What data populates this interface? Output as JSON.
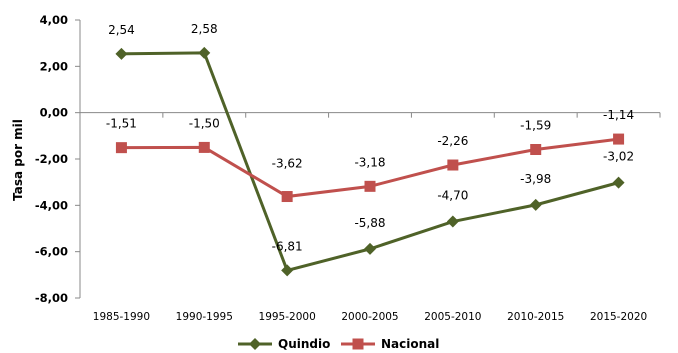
{
  "chart_data": {
    "type": "line",
    "title": "",
    "xlabel": "",
    "ylabel": "Tasa por mil",
    "ylim": [
      -8,
      4
    ],
    "yticks": [
      "4,00",
      "2,00",
      "0,00",
      "-2,00",
      "-4,00",
      "-6,00",
      "-8,00"
    ],
    "grid": false,
    "legend_position": "bottom",
    "categories": [
      "1985-1990",
      "1990-1995",
      "1995-2000",
      "2000-2005",
      "2005-2010",
      "2010-2015",
      "2015-2020"
    ],
    "series": [
      {
        "name": "Quindio",
        "values": [
          2.54,
          2.58,
          -6.81,
          -5.88,
          -4.7,
          -3.98,
          -3.02
        ],
        "labels": [
          "2,54",
          "2,58",
          "-6,81",
          "-5,88",
          "-4,70",
          "-3,98",
          "-3,02"
        ],
        "color": "#4F6228",
        "marker": "diamond"
      },
      {
        "name": "Nacional",
        "values": [
          -1.51,
          -1.5,
          -3.62,
          -3.18,
          -2.26,
          -1.59,
          -1.14
        ],
        "labels": [
          "-1,51",
          "-1,50",
          "-3,62",
          "-3,18",
          "-2,26",
          "-1,59",
          "-1,14"
        ],
        "color": "#C0504D",
        "marker": "square"
      }
    ]
  }
}
